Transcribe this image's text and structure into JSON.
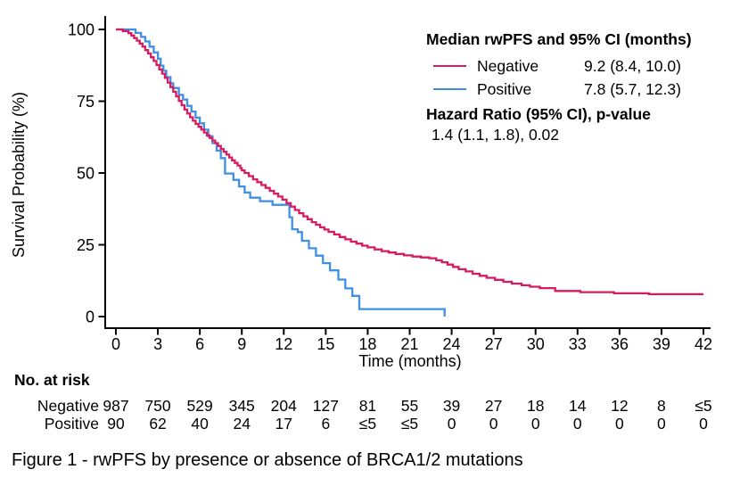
{
  "figure": {
    "caption": "Figure 1 - rwPFS by presence or absence of BRCA1/2 mutations"
  },
  "chart_data": {
    "type": "line",
    "subtype": "kaplan-meier-step",
    "title": "",
    "xlabel": "Time (months)",
    "ylabel": "Survival Probability (%)",
    "xlim": [
      0,
      42
    ],
    "ylim": [
      0,
      100
    ],
    "xticks": [
      0,
      3,
      6,
      9,
      12,
      15,
      18,
      21,
      24,
      27,
      30,
      33,
      36,
      39,
      42
    ],
    "yticks": [
      0,
      25,
      50,
      75,
      100
    ],
    "grid": false,
    "axis_color": "#000000",
    "legend": {
      "position": "top-right",
      "title": "Median rwPFS and 95% CI (months)",
      "entries": [
        {
          "name": "Negative",
          "median_ci": "9.2 (8.4, 10.0)",
          "color": "#D81B60"
        },
        {
          "name": "Positive",
          "median_ci": "7.8 (5.7, 12.3)",
          "color": "#3F8FE5"
        }
      ],
      "hazard_title": "Hazard Ratio (95% CI), p-value",
      "hazard_value": "1.4 (1.1, 1.8), 0.02"
    },
    "series": [
      {
        "name": "Negative",
        "color": "#D81B60",
        "points": [
          [
            0,
            100
          ],
          [
            0.5,
            99.4
          ],
          [
            0.9,
            98.7
          ],
          [
            1.1,
            97.9
          ],
          [
            1.3,
            97.0
          ],
          [
            1.5,
            96.1
          ],
          [
            1.7,
            95.1
          ],
          [
            1.9,
            94.0
          ],
          [
            2.1,
            92.8
          ],
          [
            2.3,
            91.6
          ],
          [
            2.5,
            90.3
          ],
          [
            2.7,
            89.0
          ],
          [
            2.9,
            87.6
          ],
          [
            3.1,
            86.1
          ],
          [
            3.3,
            84.6
          ],
          [
            3.5,
            83.1
          ],
          [
            3.7,
            81.5
          ],
          [
            3.9,
            79.9
          ],
          [
            4.1,
            78.3
          ],
          [
            4.3,
            76.7
          ],
          [
            4.5,
            75.1
          ],
          [
            4.7,
            73.6
          ],
          [
            4.9,
            72.1
          ],
          [
            5.1,
            70.7
          ],
          [
            5.3,
            69.4
          ],
          [
            5.5,
            68.2
          ],
          [
            5.7,
            67.1
          ],
          [
            5.9,
            66.1
          ],
          [
            6.1,
            65.1
          ],
          [
            6.3,
            64.1
          ],
          [
            6.5,
            63.1
          ],
          [
            6.7,
            62.2
          ],
          [
            6.9,
            61.3
          ],
          [
            7.1,
            60.4
          ],
          [
            7.3,
            59.4
          ],
          [
            7.5,
            58.4
          ],
          [
            7.7,
            57.4
          ],
          [
            7.9,
            56.4
          ],
          [
            8.1,
            55.4
          ],
          [
            8.3,
            54.4
          ],
          [
            8.5,
            53.5
          ],
          [
            8.7,
            52.6
          ],
          [
            8.9,
            51.7
          ],
          [
            9.0,
            50.9
          ],
          [
            9.2,
            50.0
          ],
          [
            9.5,
            48.9
          ],
          [
            9.8,
            47.8
          ],
          [
            10.1,
            46.8
          ],
          [
            10.4,
            45.8
          ],
          [
            10.7,
            44.8
          ],
          [
            11.0,
            43.8
          ],
          [
            11.3,
            42.8
          ],
          [
            11.6,
            41.8
          ],
          [
            11.9,
            40.7
          ],
          [
            12.2,
            39.5
          ],
          [
            12.5,
            38.3
          ],
          [
            12.8,
            37.1
          ],
          [
            13.1,
            36.0
          ],
          [
            13.4,
            34.9
          ],
          [
            13.7,
            33.9
          ],
          [
            14.0,
            32.9
          ],
          [
            14.3,
            32.0
          ],
          [
            14.6,
            31.1
          ],
          [
            14.9,
            30.3
          ],
          [
            15.2,
            29.5
          ],
          [
            15.6,
            28.6
          ],
          [
            16.0,
            27.7
          ],
          [
            16.4,
            26.9
          ],
          [
            16.8,
            26.1
          ],
          [
            17.2,
            25.4
          ],
          [
            17.6,
            24.7
          ],
          [
            18.0,
            24.1
          ],
          [
            18.5,
            23.4
          ],
          [
            19.0,
            22.8
          ],
          [
            19.5,
            22.3
          ],
          [
            20.0,
            21.8
          ],
          [
            20.6,
            21.3
          ],
          [
            21.2,
            20.9
          ],
          [
            21.8,
            20.6
          ],
          [
            22.4,
            20.3
          ],
          [
            22.9,
            19.6
          ],
          [
            23.3,
            18.9
          ],
          [
            23.7,
            18.1
          ],
          [
            24.1,
            17.3
          ],
          [
            24.5,
            16.5
          ],
          [
            25.0,
            15.7
          ],
          [
            25.5,
            14.9
          ],
          [
            26.0,
            14.2
          ],
          [
            26.5,
            13.5
          ],
          [
            27.1,
            12.8
          ],
          [
            27.7,
            12.1
          ],
          [
            28.3,
            11.5
          ],
          [
            29.0,
            10.9
          ],
          [
            29.6,
            10.4
          ],
          [
            30.3,
            9.9
          ],
          [
            31.4,
            8.9
          ],
          [
            33.2,
            8.5
          ],
          [
            35.6,
            8.1
          ],
          [
            38.1,
            7.8
          ],
          [
            42,
            7.8
          ]
        ]
      },
      {
        "name": "Positive",
        "color": "#3F8FE5",
        "points": [
          [
            0,
            100
          ],
          [
            1.4,
            98.8
          ],
          [
            1.8,
            97.4
          ],
          [
            2.1,
            95.8
          ],
          [
            2.4,
            94.0
          ],
          [
            2.7,
            92.0
          ],
          [
            3.0,
            89.8
          ],
          [
            3.2,
            87.4
          ],
          [
            3.4,
            85.6
          ],
          [
            3.6,
            83.4
          ],
          [
            3.9,
            81.2
          ],
          [
            4.1,
            79.6
          ],
          [
            4.5,
            77.2
          ],
          [
            4.8,
            75.6
          ],
          [
            5.1,
            73.4
          ],
          [
            5.4,
            71.4
          ],
          [
            5.7,
            69.3
          ],
          [
            6.0,
            67.3
          ],
          [
            6.3,
            65.1
          ],
          [
            6.6,
            62.8
          ],
          [
            6.9,
            60.4
          ],
          [
            7.2,
            57.8
          ],
          [
            7.5,
            55.2
          ],
          [
            7.8,
            49.8
          ],
          [
            8.4,
            47.6
          ],
          [
            8.8,
            45.3
          ],
          [
            9.2,
            43.2
          ],
          [
            9.6,
            41.4
          ],
          [
            10.3,
            40.2
          ],
          [
            11.2,
            38.9
          ],
          [
            12.4,
            34.6
          ],
          [
            12.6,
            30.4
          ],
          [
            13.0,
            29.4
          ],
          [
            13.3,
            26.4
          ],
          [
            13.8,
            23.8
          ],
          [
            14.3,
            21.2
          ],
          [
            14.8,
            18.6
          ],
          [
            15.3,
            16.1
          ],
          [
            15.9,
            12.9
          ],
          [
            16.4,
            9.8
          ],
          [
            16.9,
            7.2
          ],
          [
            17.4,
            2.6
          ],
          [
            23.5,
            0
          ]
        ]
      }
    ]
  },
  "at_risk": {
    "header": "No. at risk",
    "times": [
      0,
      3,
      6,
      9,
      12,
      15,
      18,
      21,
      24,
      27,
      30,
      33,
      36,
      39,
      42
    ],
    "rows": [
      {
        "label": "Negative",
        "values": [
          "987",
          "750",
          "529",
          "345",
          "204",
          "127",
          "81",
          "55",
          "39",
          "27",
          "18",
          "14",
          "12",
          "8",
          "≤5"
        ]
      },
      {
        "label": "Positive",
        "values": [
          "90",
          "62",
          "40",
          "24",
          "17",
          "6",
          "≤5",
          "≤5",
          "0",
          "0",
          "0",
          "0",
          "0",
          "0",
          "0"
        ]
      }
    ]
  }
}
